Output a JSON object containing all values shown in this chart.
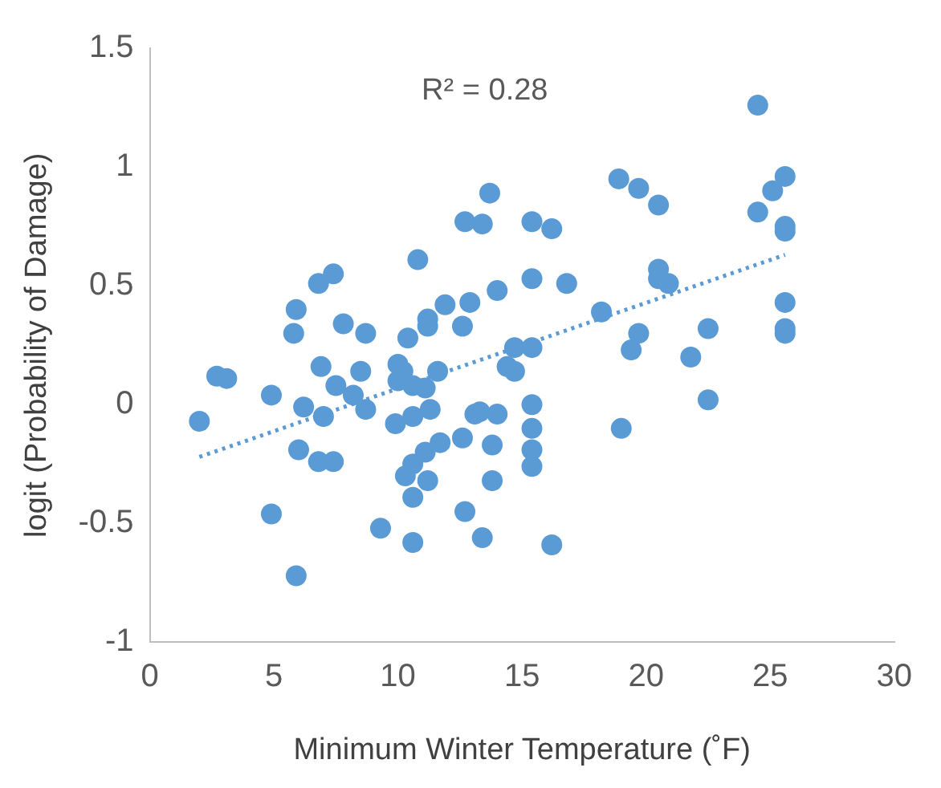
{
  "chart_data": {
    "type": "scatter",
    "xlabel": "Minimum Winter Temperature (˚F)",
    "ylabel": "logit (Probability of Damage)",
    "annotations": [
      "R² = 0.28"
    ],
    "xlim": [
      0,
      30
    ],
    "xticks": [
      0,
      5,
      10,
      15,
      20,
      25,
      30
    ],
    "ylim": [
      -1,
      1.5
    ],
    "yticks": [
      -1,
      -0.5,
      0,
      0.5,
      1,
      1.5
    ],
    "grid": false,
    "legend": false,
    "marker": "circle",
    "series": [
      {
        "type": "scatter",
        "color": "#5b9bd5",
        "x": [
          2.0,
          2.7,
          3.1,
          4.9,
          4.9,
          5.9,
          5.8,
          6.2,
          6.0,
          5.9,
          6.8,
          7.4,
          6.9,
          7.0,
          7.5,
          6.8,
          7.4,
          7.8,
          8.2,
          8.5,
          8.7,
          8.7,
          9.3,
          9.9,
          10.0,
          10.0,
          10.2,
          10.4,
          10.6,
          10.6,
          10.8,
          10.3,
          10.6,
          10.6,
          10.6,
          11.1,
          11.2,
          11.2,
          11.3,
          11.1,
          11.2,
          11.6,
          11.7,
          11.9,
          12.6,
          12.6,
          12.7,
          12.7,
          13.4,
          12.9,
          13.1,
          13.3,
          13.4,
          13.7,
          13.8,
          13.8,
          14.0,
          14.0,
          14.4,
          14.7,
          14.7,
          15.4,
          15.4,
          15.4,
          15.4,
          15.4,
          15.4,
          15.4,
          16.2,
          16.2,
          16.8,
          18.2,
          18.9,
          19.7,
          19.0,
          19.4,
          19.7,
          20.5,
          20.5,
          20.5,
          20.9,
          21.8,
          22.5,
          22.5,
          24.5,
          24.5,
          25.1,
          25.6,
          25.6,
          25.6,
          25.6,
          25.6,
          25.6
        ],
        "values": [
          -0.07,
          0.12,
          0.11,
          0.04,
          -0.46,
          0.4,
          0.3,
          -0.01,
          -0.19,
          -0.72,
          0.51,
          0.55,
          0.16,
          -0.05,
          0.08,
          -0.24,
          -0.24,
          0.34,
          0.04,
          0.14,
          -0.02,
          0.3,
          -0.52,
          -0.08,
          0.17,
          0.1,
          0.14,
          0.28,
          0.08,
          -0.05,
          0.61,
          -0.3,
          -0.25,
          -0.39,
          -0.58,
          0.07,
          0.33,
          0.36,
          -0.02,
          -0.2,
          -0.32,
          0.14,
          -0.16,
          0.42,
          0.33,
          -0.14,
          -0.45,
          0.77,
          0.76,
          0.43,
          -0.04,
          -0.03,
          -0.56,
          0.89,
          -0.17,
          -0.32,
          -0.04,
          0.48,
          0.16,
          0.14,
          0.24,
          0.24,
          0.77,
          0.53,
          0.0,
          -0.1,
          -0.19,
          -0.26,
          0.74,
          -0.59,
          0.51,
          0.39,
          0.95,
          0.91,
          -0.1,
          0.23,
          0.3,
          0.84,
          0.57,
          0.53,
          0.51,
          0.2,
          0.32,
          0.02,
          1.26,
          0.81,
          0.9,
          0.96,
          0.75,
          0.73,
          0.43,
          0.32,
          0.3
        ]
      },
      {
        "type": "line",
        "color": "#5b9bd5",
        "line_style": "dotted",
        "marker": "none",
        "x": [
          2.0,
          25.6
        ],
        "values": [
          -0.22,
          0.63
        ]
      }
    ]
  }
}
